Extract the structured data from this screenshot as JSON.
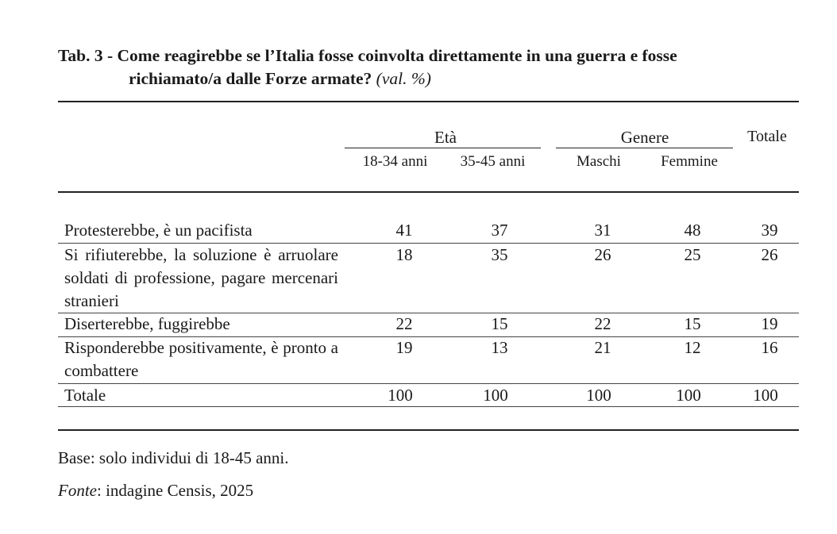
{
  "title": {
    "line1": "Tab. 3 - Come reagirebbe se l’Italia fosse coinvolta direttamente in una guerra e fosse",
    "line2": "richiamato/a dalle Forze armate?",
    "suffix": "(val. %)"
  },
  "header": {
    "group_eta": "Età",
    "group_genere": "Genere",
    "totale": "Totale",
    "columns": [
      "18-34 anni",
      "35-45 anni",
      "Maschi",
      "Femmine"
    ]
  },
  "rows": [
    {
      "label": "Protesterebbe, è un pacifista",
      "values": [
        "41",
        "37",
        "31",
        "48",
        "39"
      ]
    },
    {
      "label": "Si rifiuterebbe, la soluzione è arruolare soldati di professione, pagare mercenari stranieri",
      "values": [
        "18",
        "35",
        "26",
        "25",
        "26"
      ]
    },
    {
      "label": "Diserterebbe, fuggirebbe",
      "values": [
        "22",
        "15",
        "22",
        "15",
        "19"
      ]
    },
    {
      "label": "Risponderebbe positivamente, è pronto a combattere",
      "values": [
        "19",
        "13",
        "21",
        "12",
        "16"
      ]
    },
    {
      "label": "Totale",
      "values": [
        "100",
        "100",
        "100",
        "100",
        "100"
      ]
    }
  ],
  "footer": {
    "base": "Base: solo individui di 18-45 anni.",
    "fonte_label": "Fonte",
    "fonte_text": ": indagine Censis, 2025"
  }
}
